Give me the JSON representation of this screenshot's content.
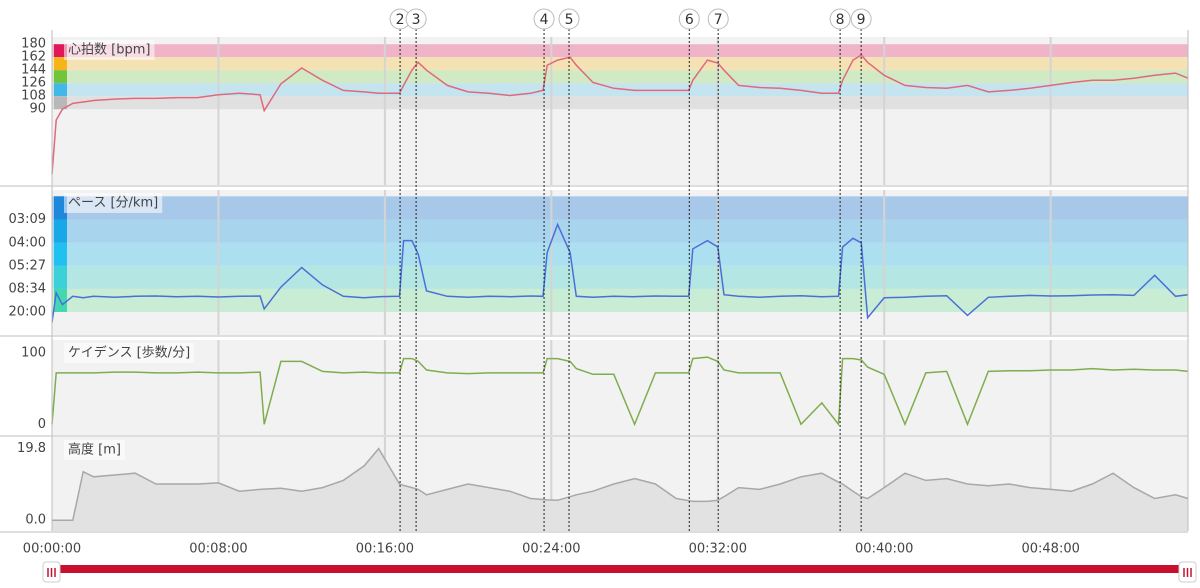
{
  "chart_data": {
    "type": "multi-panel",
    "x": [
      0,
      0.2,
      0.5,
      1,
      1.5,
      2,
      3,
      4,
      5,
      6,
      7,
      8,
      9,
      10,
      10.2,
      11,
      12,
      13,
      14,
      15,
      15.7,
      16.7,
      16.9,
      17.3,
      17.6,
      18,
      19,
      20,
      21,
      22,
      23,
      23.6,
      23.8,
      24.3,
      24.9,
      25.2,
      26,
      27,
      28,
      29,
      30,
      30.6,
      30.8,
      31.5,
      32,
      32.3,
      33,
      34,
      35,
      36,
      37,
      37.8,
      38,
      38.5,
      38.9,
      39.2,
      40,
      41,
      42,
      43,
      44,
      45,
      46,
      47,
      48,
      49,
      50,
      51,
      52,
      53,
      54,
      54.6
    ],
    "xlim": [
      0,
      54.6
    ],
    "xticks": [
      {
        "value": 0,
        "label": "00:00:00"
      },
      {
        "value": 8,
        "label": "00:08:00"
      },
      {
        "value": 16,
        "label": "00:16:00"
      },
      {
        "value": 24,
        "label": "00:24:00"
      },
      {
        "value": 32,
        "label": "00:32:00"
      },
      {
        "value": 40,
        "label": "00:40:00"
      },
      {
        "value": 48,
        "label": "00:48:00"
      }
    ],
    "grid": true,
    "markers": [
      {
        "label": "2",
        "x": 16.73
      },
      {
        "label": "3",
        "x": 17.5
      },
      {
        "label": "4",
        "x": 23.65
      },
      {
        "label": "5",
        "x": 24.85
      },
      {
        "label": "6",
        "x": 30.63
      },
      {
        "label": "7",
        "x": 32.02
      },
      {
        "label": "8",
        "x": 37.88
      },
      {
        "label": "9",
        "x": 38.89
      }
    ],
    "panels": [
      {
        "type": "line",
        "label": "心拍数 [bpm]",
        "color": "#e0697c",
        "ylim": [
          -15,
          190
        ],
        "yticks": [
          180,
          162,
          144,
          126,
          108,
          90
        ],
        "zones": [
          {
            "range": [
              162,
              180
            ],
            "color": "#f0b4c8",
            "marker_color": "#e0185a"
          },
          {
            "range": [
              144,
              162
            ],
            "color": "#f4e2b4",
            "marker_color": "#f7b418"
          },
          {
            "range": [
              126,
              144
            ],
            "color": "#d2eac4",
            "marker_color": "#72c43a"
          },
          {
            "range": [
              108,
              126
            ],
            "color": "#c4e4f0",
            "marker_color": "#42b8e8"
          },
          {
            "range": [
              90,
              108
            ],
            "color": "#e0e0e0",
            "marker_color": "#b8b8b8"
          }
        ],
        "values": [
          0,
          75,
          90,
          98,
          100,
          102,
          104,
          105,
          105,
          106,
          106,
          110,
          112,
          110,
          88,
          125,
          147,
          130,
          116,
          114,
          112,
          112,
          123,
          144,
          155,
          144,
          123,
          114,
          112,
          109,
          112,
          116,
          151,
          158,
          162,
          151,
          127,
          119,
          116,
          116,
          116,
          116,
          130,
          158,
          154,
          144,
          123,
          120,
          119,
          116,
          112,
          112,
          130,
          158,
          165,
          155,
          137,
          123,
          120,
          119,
          123,
          114,
          116,
          119,
          123,
          127,
          130,
          130,
          133,
          137,
          140,
          133
        ]
      },
      {
        "type": "line",
        "label": "ペース [分/km]",
        "scale": "inverse",
        "color": "#4a6fd8",
        "ylim": [
          60,
          2.5
        ],
        "yticks": [
          {
            "value": 3.15,
            "label": "03:09"
          },
          {
            "value": 4,
            "label": "04:00"
          },
          {
            "value": 5.45,
            "label": "05:27"
          },
          {
            "value": 8.5667,
            "label": "08:34"
          },
          {
            "value": 20,
            "label": "20:00"
          }
        ],
        "zones": [
          {
            "range": [
              20,
              8.5667
            ],
            "color": "#c8ecd4",
            "marker_color": "#44d8b0"
          },
          {
            "range": [
              8.5667,
              5.45
            ],
            "color": "#b4e6e4",
            "marker_color": "#3cd0d8"
          },
          {
            "range": [
              5.45,
              4
            ],
            "color": "#acdff0",
            "marker_color": "#20c0f0"
          },
          {
            "range": [
              4,
              3.15
            ],
            "color": "#a8d4ee",
            "marker_color": "#18a8e8"
          },
          {
            "range": [
              3.15,
              2.6
            ],
            "color": "#a8c8ea",
            "marker_color": "#1e88dd"
          }
        ],
        "values": [
          50,
          9.5,
          14,
          10.5,
          11,
          10.5,
          10.8,
          10.5,
          10.4,
          10.6,
          10.5,
          10.7,
          10.5,
          10.4,
          17,
          8.2,
          5.6,
          7.8,
          10.5,
          11,
          10.6,
          10.5,
          3.9,
          3.9,
          4.6,
          9,
          10.5,
          10.8,
          10.5,
          10.6,
          10.4,
          10.5,
          4.5,
          3.3,
          4.5,
          10.5,
          10.8,
          10.5,
          10.6,
          10.4,
          10.5,
          10.5,
          4.3,
          3.9,
          4.2,
          10,
          10.5,
          10.8,
          10.5,
          10.3,
          10.6,
          10.5,
          4.2,
          3.8,
          4.0,
          30,
          11,
          10.8,
          10.5,
          10.3,
          25,
          10.8,
          10.5,
          10.2,
          10.4,
          10.3,
          10.1,
          10,
          10.2,
          6.4,
          10.5,
          10
        ]
      },
      {
        "type": "line",
        "label": "ケイデンス [歩数/分]",
        "color": "#7fad4e",
        "ylim": [
          -15,
          118
        ],
        "yticks": [
          100,
          0
        ],
        "values": [
          0,
          72,
          72,
          72,
          72,
          72,
          73,
          73,
          72,
          72,
          73,
          72,
          72,
          73,
          0,
          88,
          88,
          74,
          72,
          73,
          72,
          72,
          92,
          92,
          88,
          76,
          72,
          71,
          72,
          72,
          72,
          72,
          92,
          92,
          88,
          78,
          70,
          70,
          0,
          72,
          72,
          72,
          92,
          94,
          88,
          76,
          72,
          72,
          72,
          0,
          30,
          0,
          92,
          92,
          90,
          80,
          70,
          0,
          72,
          74,
          0,
          74,
          75,
          75,
          76,
          76,
          78,
          76,
          77,
          76,
          76,
          74
        ]
      },
      {
        "type": "area",
        "label": "高度 [m]",
        "color": "#a8a8a8",
        "fill": "#e2e2e2",
        "ylim": [
          -3,
          23
        ],
        "yticks": [
          19.8,
          {
            "value": 0,
            "label": "0.0"
          }
        ],
        "values": [
          0,
          0,
          0,
          0,
          13.4,
          12,
          12.5,
          13,
          10,
          10,
          10,
          10.3,
          8,
          8.5,
          8.6,
          8.8,
          8,
          9,
          11,
          15,
          19.8,
          10,
          9.6,
          9,
          8.5,
          7,
          8.5,
          10,
          9,
          8,
          6,
          5.7,
          5.6,
          5.5,
          6.5,
          7,
          8,
          10,
          11.5,
          10,
          6,
          5.4,
          5.2,
          5.2,
          5.5,
          6.5,
          9,
          8.5,
          10,
          12,
          13,
          10.5,
          10,
          8,
          6.5,
          6,
          9,
          13,
          11,
          11.5,
          10,
          9.5,
          10,
          9,
          8.5,
          8,
          10,
          13,
          9,
          6,
          7,
          6
        ]
      }
    ]
  }
}
